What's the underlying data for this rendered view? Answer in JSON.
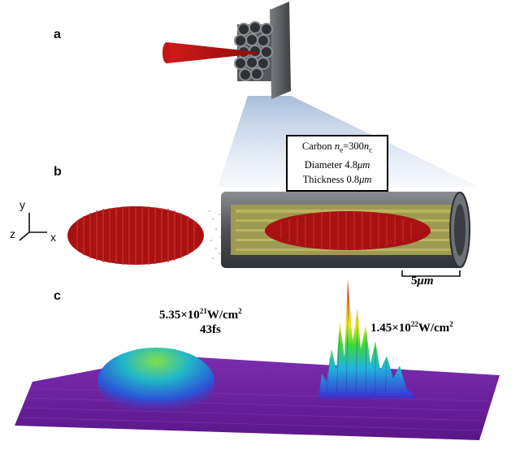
{
  "panels": {
    "a": "a",
    "b": "b",
    "c": "c"
  },
  "infobox": {
    "line1_prefix": "Carbon ",
    "line1_n": "n",
    "line1_sub": "e",
    "line1_mid": "=300",
    "line1_n2": "n",
    "line1_sub2": "c",
    "line2_label": "Diameter ",
    "line2_value": "4.8",
    "line2_unit": "μm",
    "line3_label": "Thickness ",
    "line3_value": "0.8",
    "line3_unit": "μm"
  },
  "axes": {
    "y": "y",
    "x": "x",
    "z": "z"
  },
  "scale_bar": {
    "value": "5",
    "unit": "μm"
  },
  "annotations": {
    "left_intensity_base": "5.35×10",
    "left_intensity_exp": "21",
    "left_intensity_unit": "W/cm",
    "left_intensity_unit_exp": "2",
    "left_duration": "43fs",
    "right_intensity_base": "1.45×10",
    "right_intensity_exp": "22",
    "right_intensity_unit": "W/cm",
    "right_intensity_unit_exp": "2"
  },
  "colors": {
    "laser_red": "#b31414",
    "tube_gray": "#5a5e63",
    "carbon_fill": "#a8a050",
    "surface_base": "#6a1b9a"
  }
}
